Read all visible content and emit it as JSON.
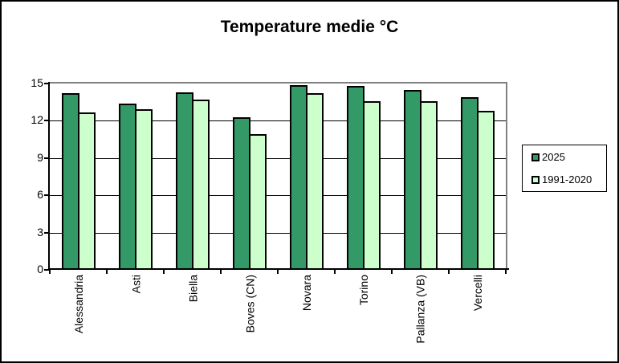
{
  "chart_data": {
    "type": "bar",
    "title": "Temperature medie °C",
    "categories": [
      "Alessandria",
      "Asti",
      "Biella",
      "Boves (CN)",
      "Novara",
      "Torino",
      "Pallanza (VB)",
      "Vercelli"
    ],
    "series": [
      {
        "name": "2025",
        "color": "#339966",
        "values": [
          14.2,
          13.4,
          14.3,
          12.3,
          14.9,
          14.8,
          14.5,
          13.9
        ]
      },
      {
        "name": "1991-2020",
        "color": "#CCFFCC",
        "values": [
          12.7,
          12.9,
          13.7,
          10.9,
          14.2,
          13.6,
          13.6,
          12.8
        ]
      }
    ],
    "xlabel": "",
    "ylabel": "",
    "ylim": [
      0,
      15
    ],
    "yticks": [
      0,
      3,
      6,
      9,
      12,
      15
    ],
    "grid": true,
    "legend_position": "right",
    "colors": {
      "bar_border": "#000000",
      "gridline": "#000000",
      "plot_border": "#808080",
      "axis": "#000000",
      "background": "#FFFFFF"
    }
  }
}
